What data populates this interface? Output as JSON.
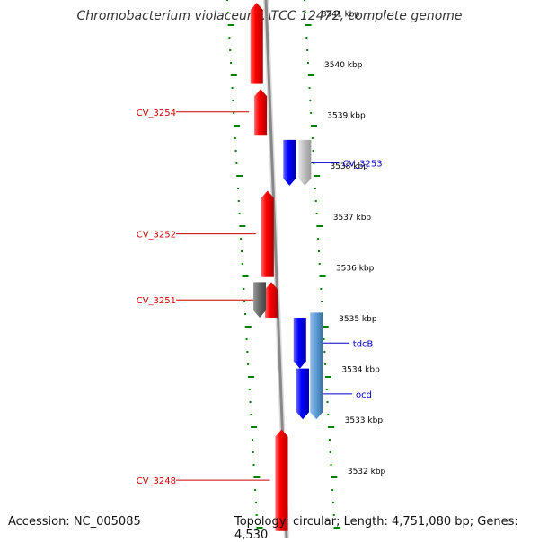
{
  "title": "Chromobacterium violaceum ATCC 12472, complete genome",
  "footer": {
    "accession": "Accession: NC_005085",
    "topology": "Topology: circular; Length: 4,751,080 bp; Genes: 4,530"
  },
  "scale_unit": "kbp",
  "kbp_ticks": [
    3541,
    3540,
    3539,
    3538,
    3537,
    3536,
    3535,
    3534,
    3533,
    3532
  ],
  "genes_left": [
    {
      "name": "",
      "color": "#ff0000",
      "start": 3539.6,
      "end": 3541.2
    },
    {
      "name": "CV_3254",
      "color": "#ff0000",
      "start": 3538.6,
      "end": 3539.5
    },
    {
      "name": "CV_3252",
      "color": "#ff0000",
      "start": 3535.8,
      "end": 3537.5
    },
    {
      "name": "CV_3251",
      "color": "#ff0000",
      "start": 3535.0,
      "end": 3535.7
    },
    {
      "name": "",
      "color": "#666666",
      "start": 3535.0,
      "end": 3535.7
    },
    {
      "name": "CV_3248",
      "color": "#ff0000",
      "start": 3530.8,
      "end": 3532.8
    }
  ],
  "genes_right": [
    {
      "name": "CV_3253",
      "color": "#0000ff",
      "start": 3537.6,
      "end": 3538.5
    },
    {
      "name": "",
      "color": "#bbbbbb",
      "start": 3537.6,
      "end": 3538.5
    },
    {
      "name": "tdcB",
      "color": "#0000ff",
      "start": 3534.0,
      "end": 3535.0
    },
    {
      "name": "ocd",
      "color": "#0000ff",
      "start": 3533.0,
      "end": 3534.0
    },
    {
      "name": "",
      "color": "#5b9bd5",
      "start": 3533.0,
      "end": 3535.1
    }
  ],
  "colors": {
    "forward": "#ff0000",
    "reverse": "#0000ff",
    "backbone": "#888888",
    "ticks": "#008000",
    "label_left": "#cc0000",
    "label_right": "#0000cc"
  }
}
